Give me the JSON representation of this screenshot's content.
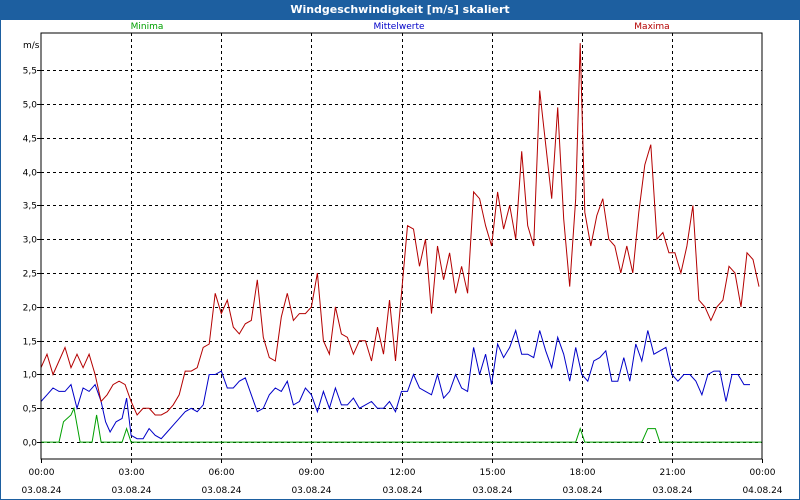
{
  "window": {
    "title": "Windgeschwindigkeit [m/s] skaliert"
  },
  "chart_data": {
    "type": "line",
    "ylabel": "m/s",
    "ylim": [
      -0.25,
      6.05
    ],
    "yticks": [
      "0,0",
      "0,5",
      "1,0",
      "1,5",
      "2,0",
      "2,5",
      "3,0",
      "3,5",
      "4,0",
      "4,5",
      "5,0",
      "5,5"
    ],
    "ytick_values": [
      0,
      0.5,
      1,
      1.5,
      2,
      2.5,
      3,
      3.5,
      4,
      4.5,
      5,
      5.5
    ],
    "xlim_hours": [
      0,
      24
    ],
    "xticks": [
      {
        "hour": 0,
        "time": "00:00",
        "date": "03.08.24"
      },
      {
        "hour": 3,
        "time": "03:00",
        "date": "03.08.24"
      },
      {
        "hour": 6,
        "time": "06:00",
        "date": "03.08.24"
      },
      {
        "hour": 9,
        "time": "09:00",
        "date": "03.08.24"
      },
      {
        "hour": 12,
        "time": "12:00",
        "date": "03.08.24"
      },
      {
        "hour": 15,
        "time": "15:00",
        "date": "03.08.24"
      },
      {
        "hour": 18,
        "time": "18:00",
        "date": "03.08.24"
      },
      {
        "hour": 21,
        "time": "21:00",
        "date": "03.08.24"
      },
      {
        "hour": 24,
        "time": "00:00",
        "date": "04.08.24"
      }
    ],
    "grid": true,
    "legend_position": "top",
    "series": [
      {
        "name": "Minima",
        "color": "#00a000",
        "points": [
          [
            0,
            0
          ],
          [
            0.6,
            0
          ],
          [
            0.75,
            0.3
          ],
          [
            1.0,
            0.4
          ],
          [
            1.1,
            0.5
          ],
          [
            1.3,
            0
          ],
          [
            1.7,
            0
          ],
          [
            1.85,
            0.4
          ],
          [
            2.0,
            0
          ],
          [
            2.7,
            0
          ],
          [
            2.85,
            0.2
          ],
          [
            3.0,
            0
          ],
          [
            17.8,
            0
          ],
          [
            17.95,
            0.2
          ],
          [
            18.1,
            0
          ],
          [
            20.0,
            0
          ],
          [
            20.2,
            0.2
          ],
          [
            20.45,
            0.2
          ],
          [
            20.6,
            0
          ],
          [
            24,
            0
          ]
        ]
      },
      {
        "name": "Mittelwerte",
        "color": "#0000c8",
        "points": [
          [
            0,
            0.6
          ],
          [
            0.2,
            0.7
          ],
          [
            0.4,
            0.8
          ],
          [
            0.6,
            0.75
          ],
          [
            0.8,
            0.75
          ],
          [
            1.0,
            0.85
          ],
          [
            1.2,
            0.5
          ],
          [
            1.4,
            0.8
          ],
          [
            1.6,
            0.75
          ],
          [
            1.8,
            0.85
          ],
          [
            2.0,
            0.6
          ],
          [
            2.15,
            0.3
          ],
          [
            2.3,
            0.15
          ],
          [
            2.5,
            0.3
          ],
          [
            2.7,
            0.35
          ],
          [
            2.85,
            0.65
          ],
          [
            3.0,
            0.1
          ],
          [
            3.2,
            0.05
          ],
          [
            3.4,
            0.05
          ],
          [
            3.6,
            0.2
          ],
          [
            3.8,
            0.1
          ],
          [
            4.0,
            0.05
          ],
          [
            4.2,
            0.15
          ],
          [
            4.4,
            0.25
          ],
          [
            4.6,
            0.35
          ],
          [
            4.8,
            0.45
          ],
          [
            5.0,
            0.5
          ],
          [
            5.2,
            0.45
          ],
          [
            5.4,
            0.55
          ],
          [
            5.6,
            1.0
          ],
          [
            5.8,
            1.0
          ],
          [
            6.0,
            1.05
          ],
          [
            6.2,
            0.8
          ],
          [
            6.4,
            0.8
          ],
          [
            6.6,
            0.9
          ],
          [
            6.8,
            0.95
          ],
          [
            7.0,
            0.7
          ],
          [
            7.2,
            0.45
          ],
          [
            7.4,
            0.5
          ],
          [
            7.6,
            0.7
          ],
          [
            7.8,
            0.8
          ],
          [
            8.0,
            0.75
          ],
          [
            8.2,
            0.9
          ],
          [
            8.4,
            0.55
          ],
          [
            8.6,
            0.6
          ],
          [
            8.8,
            0.8
          ],
          [
            9.0,
            0.7
          ],
          [
            9.2,
            0.45
          ],
          [
            9.4,
            0.75
          ],
          [
            9.6,
            0.5
          ],
          [
            9.8,
            0.8
          ],
          [
            10.0,
            0.55
          ],
          [
            10.2,
            0.55
          ],
          [
            10.4,
            0.65
          ],
          [
            10.6,
            0.5
          ],
          [
            10.8,
            0.55
          ],
          [
            11.0,
            0.6
          ],
          [
            11.2,
            0.5
          ],
          [
            11.4,
            0.5
          ],
          [
            11.6,
            0.6
          ],
          [
            11.8,
            0.45
          ],
          [
            12.0,
            0.75
          ],
          [
            12.2,
            0.75
          ],
          [
            12.4,
            1.0
          ],
          [
            12.6,
            0.8
          ],
          [
            12.8,
            0.75
          ],
          [
            13.0,
            0.7
          ],
          [
            13.2,
            1.0
          ],
          [
            13.4,
            0.65
          ],
          [
            13.6,
            0.75
          ],
          [
            13.8,
            1.0
          ],
          [
            14.0,
            0.8
          ],
          [
            14.2,
            0.75
          ],
          [
            14.4,
            1.4
          ],
          [
            14.6,
            1.0
          ],
          [
            14.8,
            1.3
          ],
          [
            15.0,
            0.85
          ],
          [
            15.2,
            1.45
          ],
          [
            15.4,
            1.25
          ],
          [
            15.6,
            1.4
          ],
          [
            15.8,
            1.65
          ],
          [
            16.0,
            1.3
          ],
          [
            16.2,
            1.3
          ],
          [
            16.4,
            1.25
          ],
          [
            16.6,
            1.65
          ],
          [
            16.8,
            1.35
          ],
          [
            17.0,
            1.1
          ],
          [
            17.2,
            1.55
          ],
          [
            17.4,
            1.3
          ],
          [
            17.6,
            0.9
          ],
          [
            17.8,
            1.4
          ],
          [
            18.0,
            1.0
          ],
          [
            18.2,
            0.9
          ],
          [
            18.4,
            1.2
          ],
          [
            18.6,
            1.25
          ],
          [
            18.8,
            1.35
          ],
          [
            19.0,
            0.9
          ],
          [
            19.2,
            0.9
          ],
          [
            19.4,
            1.25
          ],
          [
            19.6,
            0.9
          ],
          [
            19.8,
            1.45
          ],
          [
            20.0,
            1.2
          ],
          [
            20.2,
            1.65
          ],
          [
            20.4,
            1.3
          ],
          [
            20.6,
            1.35
          ],
          [
            20.8,
            1.4
          ],
          [
            21.0,
            1.0
          ],
          [
            21.2,
            0.9
          ],
          [
            21.4,
            1.0
          ],
          [
            21.6,
            1.0
          ],
          [
            21.8,
            0.9
          ],
          [
            22.0,
            0.7
          ],
          [
            22.2,
            1.0
          ],
          [
            22.4,
            1.05
          ],
          [
            22.6,
            1.05
          ],
          [
            22.8,
            0.6
          ],
          [
            23.0,
            1.0
          ],
          [
            23.2,
            1.0
          ],
          [
            23.4,
            0.85
          ],
          [
            23.6,
            0.85
          ]
        ]
      },
      {
        "name": "Maxima",
        "color": "#b40000",
        "points": [
          [
            0,
            1.1
          ],
          [
            0.2,
            1.3
          ],
          [
            0.4,
            1.0
          ],
          [
            0.6,
            1.2
          ],
          [
            0.8,
            1.4
          ],
          [
            1.0,
            1.1
          ],
          [
            1.2,
            1.3
          ],
          [
            1.4,
            1.1
          ],
          [
            1.6,
            1.3
          ],
          [
            1.8,
            1.0
          ],
          [
            2.0,
            0.6
          ],
          [
            2.2,
            0.7
          ],
          [
            2.4,
            0.85
          ],
          [
            2.6,
            0.9
          ],
          [
            2.8,
            0.85
          ],
          [
            3.0,
            0.6
          ],
          [
            3.2,
            0.4
          ],
          [
            3.4,
            0.5
          ],
          [
            3.6,
            0.5
          ],
          [
            3.8,
            0.4
          ],
          [
            4.0,
            0.4
          ],
          [
            4.2,
            0.45
          ],
          [
            4.4,
            0.55
          ],
          [
            4.6,
            0.7
          ],
          [
            4.8,
            1.05
          ],
          [
            5.0,
            1.05
          ],
          [
            5.2,
            1.1
          ],
          [
            5.4,
            1.4
          ],
          [
            5.6,
            1.45
          ],
          [
            5.8,
            2.2
          ],
          [
            6.0,
            1.9
          ],
          [
            6.2,
            2.1
          ],
          [
            6.4,
            1.7
          ],
          [
            6.6,
            1.6
          ],
          [
            6.8,
            1.75
          ],
          [
            7.0,
            1.8
          ],
          [
            7.2,
            2.4
          ],
          [
            7.4,
            1.55
          ],
          [
            7.6,
            1.25
          ],
          [
            7.8,
            1.2
          ],
          [
            8.0,
            1.85
          ],
          [
            8.2,
            2.2
          ],
          [
            8.4,
            1.8
          ],
          [
            8.6,
            1.9
          ],
          [
            8.8,
            1.9
          ],
          [
            9.0,
            2.0
          ],
          [
            9.2,
            2.5
          ],
          [
            9.4,
            1.5
          ],
          [
            9.6,
            1.3
          ],
          [
            9.8,
            2.0
          ],
          [
            10.0,
            1.6
          ],
          [
            10.2,
            1.55
          ],
          [
            10.4,
            1.3
          ],
          [
            10.6,
            1.5
          ],
          [
            10.8,
            1.5
          ],
          [
            11.0,
            1.2
          ],
          [
            11.2,
            1.7
          ],
          [
            11.4,
            1.3
          ],
          [
            11.6,
            2.1
          ],
          [
            11.8,
            1.2
          ],
          [
            12.0,
            2.2
          ],
          [
            12.2,
            3.2
          ],
          [
            12.4,
            3.15
          ],
          [
            12.6,
            2.6
          ],
          [
            12.8,
            3.0
          ],
          [
            13.0,
            1.9
          ],
          [
            13.2,
            2.9
          ],
          [
            13.4,
            2.4
          ],
          [
            13.6,
            2.8
          ],
          [
            13.8,
            2.2
          ],
          [
            14.0,
            2.6
          ],
          [
            14.2,
            2.2
          ],
          [
            14.4,
            3.7
          ],
          [
            14.6,
            3.6
          ],
          [
            14.8,
            3.2
          ],
          [
            15.0,
            2.9
          ],
          [
            15.2,
            3.7
          ],
          [
            15.4,
            3.15
          ],
          [
            15.6,
            3.5
          ],
          [
            15.8,
            3.0
          ],
          [
            16.0,
            4.3
          ],
          [
            16.2,
            3.2
          ],
          [
            16.4,
            2.9
          ],
          [
            16.6,
            5.2
          ],
          [
            16.8,
            4.4
          ],
          [
            17.0,
            3.6
          ],
          [
            17.2,
            4.95
          ],
          [
            17.4,
            3.3
          ],
          [
            17.6,
            2.3
          ],
          [
            17.8,
            3.6
          ],
          [
            17.95,
            5.9
          ],
          [
            18.1,
            3.4
          ],
          [
            18.3,
            2.9
          ],
          [
            18.5,
            3.35
          ],
          [
            18.7,
            3.6
          ],
          [
            18.9,
            3.0
          ],
          [
            19.1,
            2.9
          ],
          [
            19.3,
            2.5
          ],
          [
            19.5,
            2.9
          ],
          [
            19.7,
            2.5
          ],
          [
            19.9,
            3.4
          ],
          [
            20.1,
            4.1
          ],
          [
            20.3,
            4.4
          ],
          [
            20.5,
            3.0
          ],
          [
            20.7,
            3.1
          ],
          [
            20.9,
            2.8
          ],
          [
            21.1,
            2.8
          ],
          [
            21.3,
            2.5
          ],
          [
            21.5,
            2.9
          ],
          [
            21.7,
            3.5
          ],
          [
            21.9,
            2.1
          ],
          [
            22.1,
            2.0
          ],
          [
            22.3,
            1.8
          ],
          [
            22.5,
            2.0
          ],
          [
            22.7,
            2.1
          ],
          [
            22.9,
            2.6
          ],
          [
            23.1,
            2.5
          ],
          [
            23.3,
            2.0
          ],
          [
            23.5,
            2.8
          ],
          [
            23.7,
            2.7
          ],
          [
            23.9,
            2.3
          ]
        ]
      }
    ]
  }
}
